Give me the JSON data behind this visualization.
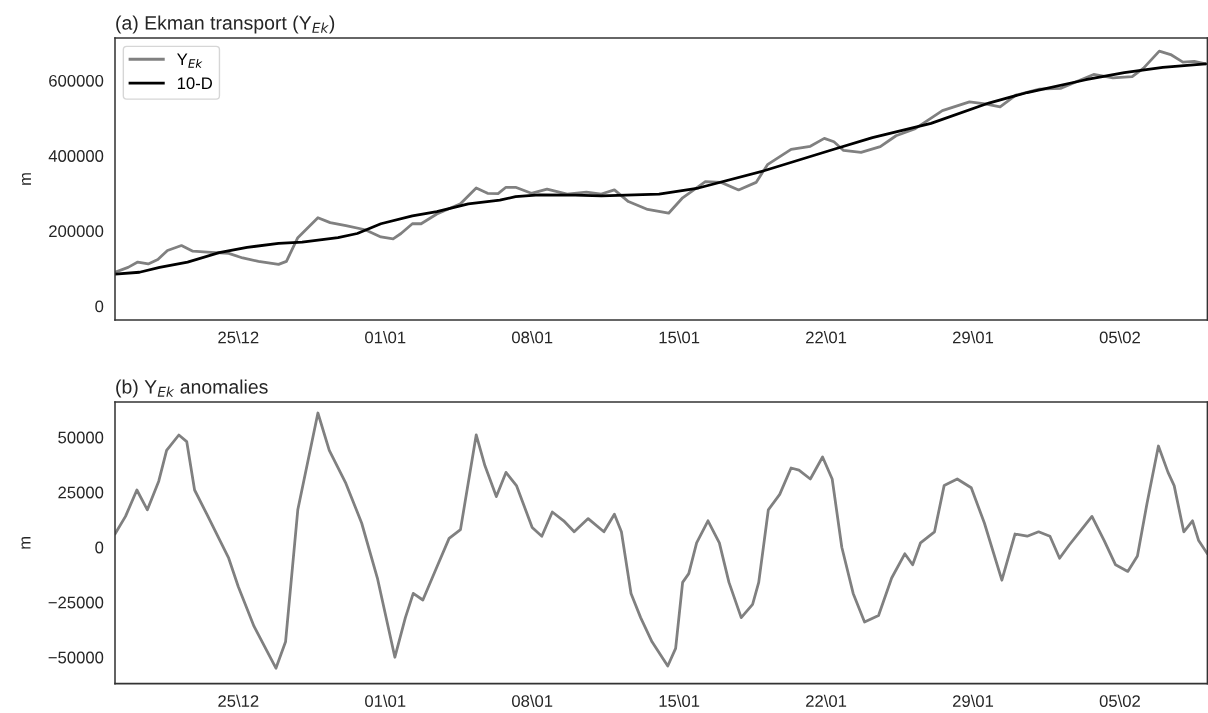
{
  "chart_data": [
    {
      "type": "line",
      "title": "(a) Ekman transport (Y$_{Ek}$)",
      "ylabel": "m",
      "series": [
        {
          "name": "Y$_{Ek}$",
          "color": "#808080",
          "x": [
            "2000-12-19T03:00",
            "2000-12-19T18:00",
            "2000-12-20T05:00",
            "2000-12-20T17:00",
            "2000-12-21T04:00",
            "2000-12-21T15:00",
            "2000-12-22T07:00",
            "2000-12-22T20:00",
            "2000-12-23T17:00",
            "2000-12-24T13:00",
            "2000-12-25T05:00",
            "2000-12-25T23:00",
            "2000-12-26T22:00",
            "2000-12-27T07:00",
            "2000-12-27T20:00",
            "2000-12-28T19:00",
            "2000-12-29T09:00",
            "2000-12-30T03:00",
            "2000-12-31T01:00",
            "2000-12-31T19:00",
            "2001-01-01T09:00",
            "2001-01-01T18:00",
            "2001-01-02T07:00",
            "2001-01-02T17:00",
            "2001-01-03T11:00",
            "2001-01-04T14:00",
            "2001-01-05T08:00",
            "2001-01-05T21:00",
            "2001-01-06T09:00",
            "2001-01-06T18:00",
            "2001-01-07T05:00",
            "2001-01-07T23:00",
            "2001-01-08T17:00",
            "2001-01-09T16:00",
            "2001-01-10T14:00",
            "2001-01-11T07:00",
            "2001-01-11T22:00",
            "2001-01-12T14:00",
            "2001-01-13T12:00",
            "2001-01-14T12:00",
            "2001-01-15T04:00",
            "2001-01-16T06:00",
            "2001-01-17T00:00",
            "2001-01-17T20:00",
            "2001-01-18T16:00",
            "2001-01-19T05:00",
            "2001-01-20T08:00",
            "2001-01-21T06:00",
            "2001-01-21T22:00",
            "2001-01-22T09:00",
            "2001-01-22T20:00",
            "2001-01-23T16:00",
            "2001-01-24T14:00",
            "2001-01-25T08:00",
            "2001-01-26T06:00",
            "2001-01-27T13:00",
            "2001-01-28T20:00",
            "2001-01-29T14:00",
            "2001-01-30T07:00",
            "2001-01-31T01:00",
            "2001-02-01T04:00",
            "2001-02-02T04:00",
            "2001-02-03T18:00",
            "2001-02-04T16:00",
            "2001-02-05T14:00",
            "2001-02-06T03:00",
            "2001-02-06T21:00",
            "2001-02-07T10:00",
            "2001-02-08T00:00",
            "2001-02-08T13:00",
            "2001-02-09T02:00"
          ],
          "values": [
            90000,
            103000,
            117000,
            112000,
            124000,
            148000,
            161000,
            146000,
            143000,
            140000,
            128000,
            119000,
            111000,
            119000,
            182000,
            235000,
            222000,
            214000,
            203000,
            184000,
            179000,
            193000,
            219000,
            219000,
            245000,
            272000,
            314000,
            300000,
            299000,
            316000,
            316000,
            300000,
            311000,
            298000,
            303000,
            298000,
            309000,
            278000,
            257000,
            247000,
            288000,
            331000,
            329000,
            309000,
            329000,
            376000,
            417000,
            425000,
            446000,
            437000,
            414000,
            409000,
            424000,
            453000,
            472000,
            520000,
            543000,
            538000,
            530000,
            561000,
            577000,
            579000,
            616000,
            607000,
            610000,
            633000,
            678000,
            669000,
            649000,
            651000,
            644000
          ]
        },
        {
          "name": "10-D",
          "color": "#000000",
          "x": [
            "2000-12-19T03:00",
            "2000-12-20T07:00",
            "2000-12-21T06:00",
            "2000-12-22T14:00",
            "2000-12-24T02:00",
            "2000-12-25T10:00",
            "2000-12-26T22:00",
            "2000-12-28T01:00",
            "2000-12-29T18:00",
            "2000-12-30T16:00",
            "2000-12-31T19:00",
            "2001-01-02T07:00",
            "2001-01-03T11:00",
            "2001-01-04T23:00",
            "2001-01-06T11:00",
            "2001-01-07T05:00",
            "2001-01-08T08:00",
            "2001-01-10T01:00",
            "2001-01-11T07:00",
            "2001-01-14T01:00",
            "2001-01-15T22:00",
            "2001-01-19T01:00",
            "2001-01-22T09:00",
            "2001-01-24T05:00",
            "2001-01-27T00:00",
            "2001-01-29T18:00",
            "2001-01-31T14:00",
            "2001-02-03T09:00",
            "2001-02-05T05:00",
            "2001-02-07T01:00",
            "2001-02-09T02:00"
          ],
          "values": [
            85000,
            90000,
            103000,
            117000,
            142000,
            156000,
            167000,
            170000,
            182000,
            193000,
            219000,
            240000,
            251000,
            272000,
            282000,
            291000,
            296000,
            295000,
            293000,
            298000,
            314000,
            360000,
            417000,
            448000,
            486000,
            540000,
            568000,
            602000,
            621000,
            635000,
            644000
          ]
        }
      ],
      "xlim": [
        "2000-12-19T03:00",
        "2001-02-09T04:00"
      ],
      "xticks": [
        {
          "value": "2000-12-25",
          "label": "25\\12"
        },
        {
          "value": "2001-01-01",
          "label": "01\\01"
        },
        {
          "value": "2001-01-08",
          "label": "08\\01"
        },
        {
          "value": "2001-01-15",
          "label": "15\\01"
        },
        {
          "value": "2001-01-22",
          "label": "22\\01"
        },
        {
          "value": "2001-01-29",
          "label": "29\\01"
        },
        {
          "value": "2001-02-05",
          "label": "05\\02"
        }
      ],
      "ylim": [
        -37000,
        713000
      ],
      "yticks": [
        0,
        200000,
        400000,
        600000
      ],
      "legend": "top left"
    },
    {
      "type": "line",
      "title": "(b) Y$_{Ek}$ anomalies",
      "ylabel": "m",
      "series": [
        {
          "color": "#808080",
          "x": [
            "2000-12-19T03:00",
            "2000-12-19T15:00",
            "2000-12-20T04:00",
            "2000-12-20T16:00",
            "2000-12-21T05:00",
            "2000-12-21T14:00",
            "2000-12-22T04:00",
            "2000-12-22T13:00",
            "2000-12-22T22:00",
            "2000-12-23T12:00",
            "2000-12-24T13:00",
            "2000-12-25T00:00",
            "2000-12-25T18:00",
            "2000-12-26T19:00",
            "2000-12-27T06:00",
            "2000-12-27T20:00",
            "2000-12-28T19:00",
            "2000-12-29T08:00",
            "2000-12-30T03:00",
            "2000-12-30T21:00",
            "2000-12-31T15:00",
            "2001-01-01T11:00",
            "2001-01-01T23:00",
            "2001-01-02T08:00",
            "2001-01-02T19:00",
            "2001-01-03T11:00",
            "2001-01-04T01:00",
            "2001-01-04T14:00",
            "2001-01-05T08:00",
            "2001-01-05T18:00",
            "2001-01-06T07:00",
            "2001-01-06T18:00",
            "2001-01-07T06:00",
            "2001-01-08T00:00",
            "2001-01-08T11:00",
            "2001-01-08T23:00",
            "2001-01-09T12:00",
            "2001-01-10T00:00",
            "2001-01-10T16:00",
            "2001-01-11T10:00",
            "2001-01-11T22:00",
            "2001-01-12T06:00",
            "2001-01-12T17:00",
            "2001-01-13T04:00",
            "2001-01-13T17:00",
            "2001-01-14T11:00",
            "2001-01-14T20:00",
            "2001-01-15T04:00",
            "2001-01-15T11:00",
            "2001-01-15T20:00",
            "2001-01-16T09:00",
            "2001-01-16T22:00",
            "2001-01-17T09:00",
            "2001-01-17T23:00",
            "2001-01-18T12:00",
            "2001-01-18T19:00",
            "2001-01-19T06:00",
            "2001-01-19T19:00",
            "2001-01-20T08:00",
            "2001-01-20T17:00",
            "2001-01-21T06:00",
            "2001-01-21T20:00",
            "2001-01-22T07:00",
            "2001-01-22T18:00",
            "2001-01-23T07:00",
            "2001-01-23T20:00",
            "2001-01-24T12:00",
            "2001-01-25T03:00",
            "2001-01-25T18:00",
            "2001-01-26T03:00",
            "2001-01-26T12:00",
            "2001-01-27T04:00",
            "2001-01-27T15:00",
            "2001-01-28T06:00",
            "2001-01-28T22:00",
            "2001-01-29T13:00",
            "2001-01-30T09:00",
            "2001-01-31T00:00",
            "2001-01-31T14:00",
            "2001-02-01T03:00",
            "2001-02-01T16:00",
            "2001-02-02T03:00",
            "2001-02-02T14:00",
            "2001-02-03T04:00",
            "2001-02-03T16:00",
            "2001-02-04T06:00",
            "2001-02-04T19:00",
            "2001-02-05T09:00",
            "2001-02-05T20:00",
            "2001-02-06T07:00",
            "2001-02-06T20:00",
            "2001-02-07T07:00",
            "2001-02-07T14:00",
            "2001-02-08T01:00",
            "2001-02-08T11:00",
            "2001-02-08T18:00",
            "2001-02-09T04:00"
          ],
          "values": [
            6000,
            14000,
            26000,
            17000,
            30000,
            44000,
            51000,
            48000,
            26000,
            15000,
            -5000,
            -18000,
            -36000,
            -55000,
            -43000,
            17000,
            61000,
            44000,
            29000,
            11000,
            -14000,
            -50000,
            -32000,
            -21000,
            -24000,
            -9000,
            4000,
            8000,
            51000,
            37000,
            23000,
            34000,
            28000,
            9000,
            5000,
            16000,
            12000,
            7000,
            13000,
            7000,
            15000,
            7000,
            -21000,
            -32000,
            -43000,
            -54000,
            -46000,
            -16000,
            -12000,
            2000,
            12000,
            2000,
            -16000,
            -32000,
            -26000,
            -16000,
            17000,
            24000,
            36000,
            35000,
            31000,
            41000,
            31000,
            0,
            -21000,
            -34000,
            -31000,
            -14000,
            -3000,
            -8000,
            2000,
            7000,
            28000,
            31000,
            27000,
            11000,
            -15000,
            6000,
            5000,
            7000,
            5000,
            -5000,
            1000,
            8000,
            14000,
            3000,
            -8000,
            -11000,
            -4000,
            20000,
            46000,
            34000,
            28000,
            7000,
            12000,
            3000,
            -3000
          ]
        }
      ],
      "xlim": [
        "2000-12-19T03:00",
        "2001-02-09T04:00"
      ],
      "xticks": [
        {
          "value": "2000-12-25",
          "label": "25\\12"
        },
        {
          "value": "2001-01-01",
          "label": "01\\01"
        },
        {
          "value": "2001-01-08",
          "label": "08\\01"
        },
        {
          "value": "2001-01-15",
          "label": "15\\01"
        },
        {
          "value": "2001-01-22",
          "label": "22\\01"
        },
        {
          "value": "2001-01-29",
          "label": "29\\01"
        },
        {
          "value": "2001-02-05",
          "label": "05\\02"
        }
      ],
      "ylim": [
        -62000,
        66000
      ],
      "yticks": [
        {
          "value": -50000,
          "label": "−50000"
        },
        {
          "value": -25000,
          "label": "−25000"
        },
        0,
        25000,
        50000
      ]
    }
  ]
}
